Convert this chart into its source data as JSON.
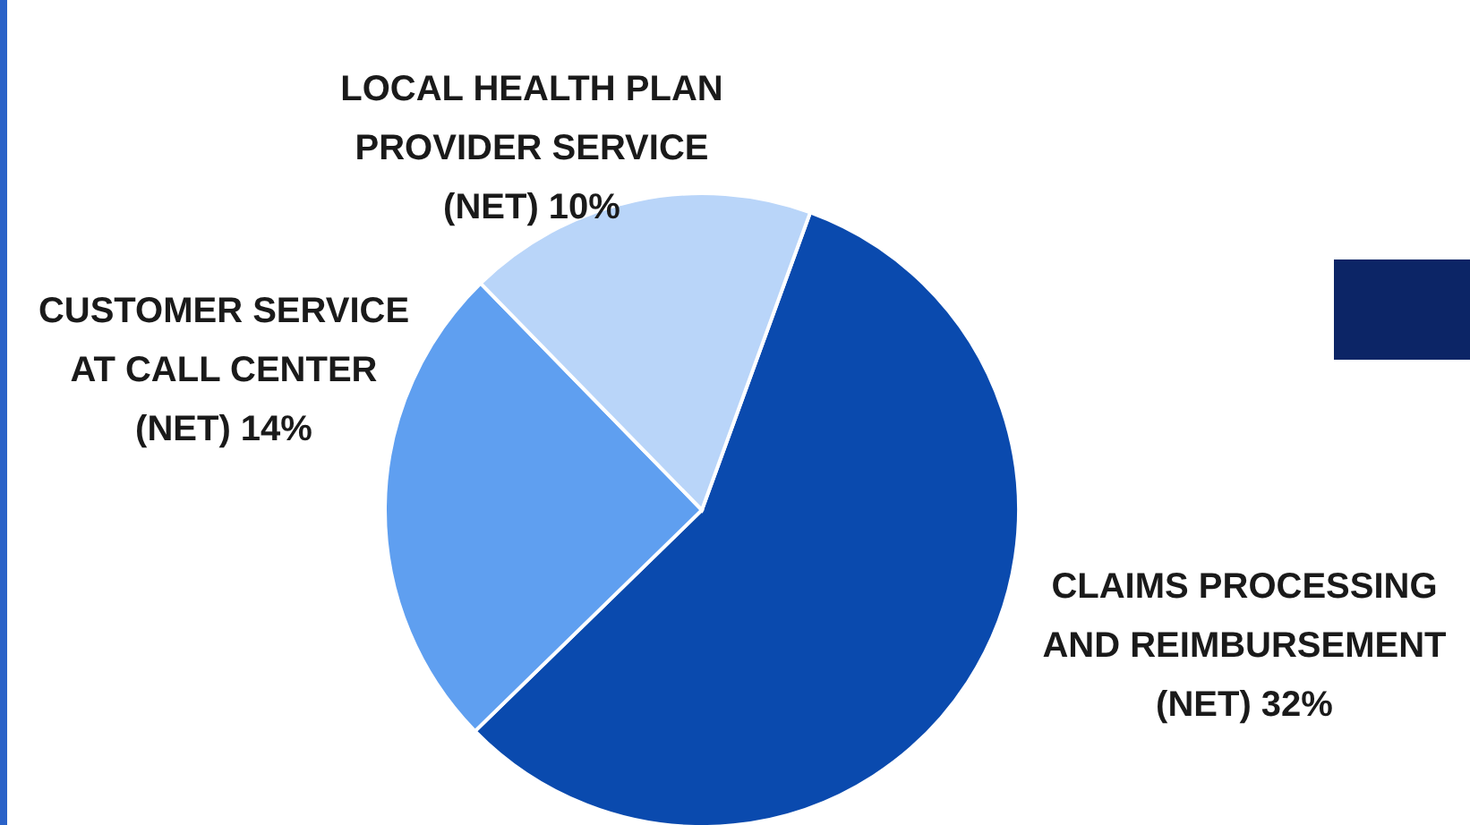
{
  "chart_data": {
    "type": "pie",
    "categories": [
      "CLAIMS PROCESSING AND REIMBURSEMENT (NET)",
      "CUSTOMER SERVICE AT CALL CENTER (NET)",
      "LOCAL HEALTH PLAN PROVIDER SERVICE (NET)"
    ],
    "values": [
      32,
      14,
      10
    ],
    "value_labels": [
      "32%",
      "14%",
      "10%"
    ],
    "colors": [
      "#0a4aae",
      "#5f9ff0",
      "#b9d5f9"
    ],
    "legend": false
  }
}
